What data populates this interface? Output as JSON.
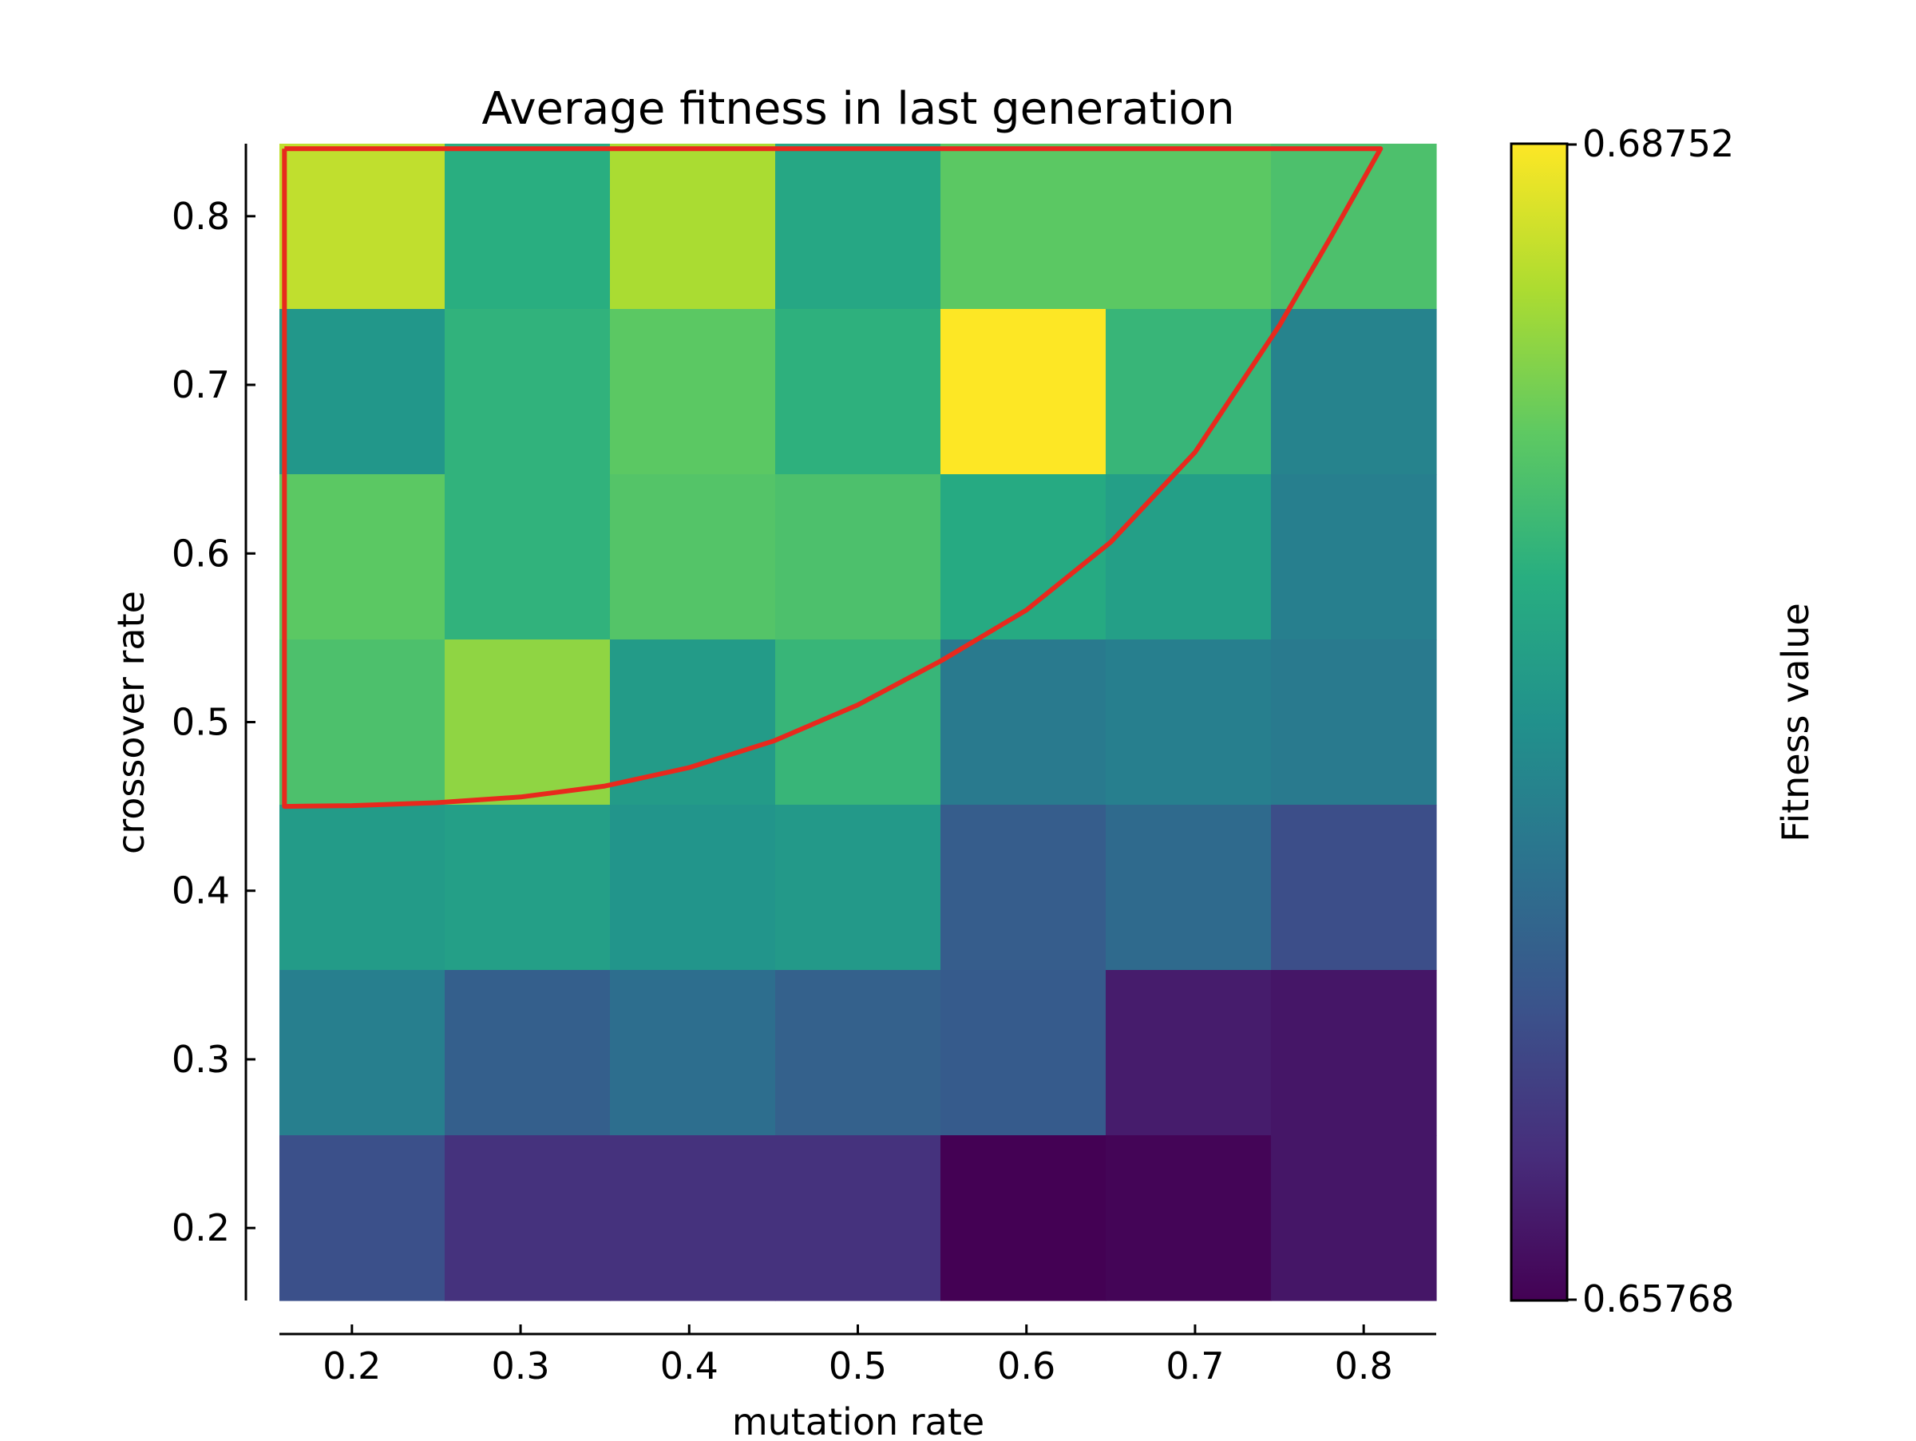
{
  "chart_data": {
    "type": "heatmap",
    "title": "Average fitness in last generation",
    "xlabel": "mutation  rate",
    "ylabel": "crossover  rate",
    "x": [
      0.2,
      0.3,
      0.4,
      0.5,
      0.6,
      0.7,
      0.8
    ],
    "y": [
      0.8,
      0.7,
      0.6,
      0.5,
      0.4,
      0.3,
      0.2
    ],
    "x_tick_labels": [
      "0.2",
      "0.3",
      "0.4",
      "0.5",
      "0.6",
      "0.7",
      "0.8"
    ],
    "y_tick_labels": [
      "0.8",
      "0.7",
      "0.6",
      "0.5",
      "0.4",
      "0.3",
      "0.2"
    ],
    "xlim": [
      0.157,
      0.843
    ],
    "ylim": [
      0.157,
      0.843
    ],
    "values": [
      [
        0.6848,
        0.6765,
        0.6838,
        0.6755,
        0.68,
        0.68,
        0.679
      ],
      [
        0.6735,
        0.677,
        0.68,
        0.6768,
        0.68752,
        0.6775,
        0.671
      ],
      [
        0.68,
        0.677,
        0.6795,
        0.679,
        0.676,
        0.6745,
        0.6705
      ],
      [
        0.679,
        0.6825,
        0.674,
        0.6775,
        0.67,
        0.6705,
        0.67
      ],
      [
        0.674,
        0.6745,
        0.6732,
        0.6738,
        0.6665,
        0.668,
        0.6648
      ],
      [
        0.6705,
        0.6668,
        0.6685,
        0.667,
        0.6663,
        0.66,
        0.6595
      ],
      [
        0.665,
        0.662,
        0.662,
        0.662,
        0.65768,
        0.658,
        0.6595
      ]
    ],
    "colorbar": {
      "label": "Fitness value",
      "min": 0.65768,
      "max": 0.68752,
      "min_label": "0.65768",
      "max_label": "0.68752",
      "colormap": "viridis"
    },
    "overlay": {
      "type": "line",
      "color": "#e8291d",
      "points": [
        [
          0.16,
          0.84
        ],
        [
          0.81,
          0.84
        ],
        [
          0.78,
          0.7867
        ],
        [
          0.75,
          0.7352
        ],
        [
          0.7,
          0.66
        ],
        [
          0.65,
          0.6067
        ],
        [
          0.6,
          0.5664
        ],
        [
          0.55,
          0.5367
        ],
        [
          0.5,
          0.5102
        ],
        [
          0.45,
          0.4888
        ],
        [
          0.4,
          0.473
        ],
        [
          0.35,
          0.4621
        ],
        [
          0.3,
          0.4556
        ],
        [
          0.25,
          0.4522
        ],
        [
          0.2,
          0.4505
        ],
        [
          0.16,
          0.45
        ],
        [
          0.16,
          0.84
        ]
      ]
    },
    "grid": false,
    "legend": "none"
  }
}
